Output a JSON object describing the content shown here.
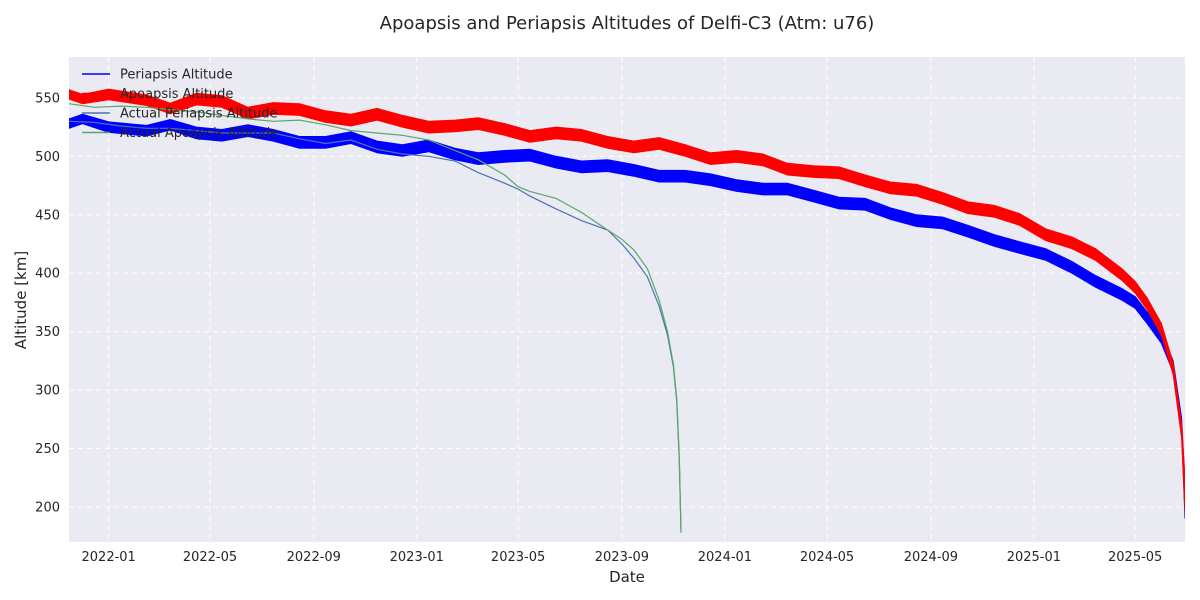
{
  "chart_data": {
    "type": "line",
    "title": "Apoapsis and Periapsis Altitudes of Delfi-C3 (Atm: u76)",
    "xlabel": "Date",
    "ylabel": "Altitude [km]",
    "x_range": [
      "2021-11-15",
      "2025-06-29"
    ],
    "ylim": [
      170,
      585
    ],
    "x_ticks": [
      "2022-01",
      "2022-05",
      "2022-09",
      "2023-01",
      "2023-05",
      "2023-09",
      "2024-01",
      "2024-05",
      "2024-09",
      "2025-01",
      "2025-05"
    ],
    "y_ticks": [
      200,
      250,
      300,
      350,
      400,
      450,
      500,
      550
    ],
    "grid": true,
    "legend_position": "top-left",
    "colors": {
      "background": "#eaeaf2",
      "grid": "#ffffff",
      "periapsis": "#0000ff",
      "apoapsis": "#ff0000",
      "actual_periapsis": "#4c72b0",
      "actual_apoapsis": "#55a868"
    },
    "series": [
      {
        "name": "Periapsis Altitude",
        "color": "#0000ff",
        "band": true,
        "x": [
          "2021-11-15",
          "2021-12-01",
          "2022-01-01",
          "2022-02-15",
          "2022-03-15",
          "2022-04-15",
          "2022-05-15",
          "2022-06-15",
          "2022-07-15",
          "2022-08-15",
          "2022-09-15",
          "2022-10-15",
          "2022-11-15",
          "2022-12-15",
          "2023-01-15",
          "2023-02-15",
          "2023-03-15",
          "2023-04-15",
          "2023-05-15",
          "2023-06-15",
          "2023-07-15",
          "2023-08-15",
          "2023-09-15",
          "2023-10-15",
          "2023-11-15",
          "2023-12-15",
          "2024-01-15",
          "2024-02-15",
          "2024-03-15",
          "2024-04-15",
          "2024-05-15",
          "2024-06-15",
          "2024-07-15",
          "2024-08-15",
          "2024-09-15",
          "2024-10-15",
          "2024-11-15",
          "2024-12-15",
          "2025-01-15",
          "2025-02-15",
          "2025-03-15",
          "2025-04-15",
          "2025-05-01",
          "2025-05-15",
          "2025-06-01",
          "2025-06-15",
          "2025-06-25",
          "2025-06-29"
        ],
        "values": [
          528,
          532,
          525,
          522,
          527,
          520,
          518,
          522,
          518,
          512,
          512,
          516,
          508,
          505,
          509,
          502,
          498,
          500,
          501,
          495,
          491,
          492,
          488,
          483,
          483,
          480,
          475,
          472,
          472,
          466,
          460,
          459,
          451,
          445,
          443,
          436,
          428,
          422,
          416,
          405,
          393,
          382,
          375,
          362,
          345,
          320,
          270,
          205
        ],
        "band_width": [
          8,
          8,
          9,
          9,
          9,
          10,
          10,
          10,
          10,
          10,
          10,
          10,
          10,
          10,
          10,
          10,
          10,
          10,
          10,
          10,
          10,
          10,
          10,
          10,
          10,
          10,
          10,
          10,
          10,
          10,
          10,
          10,
          10,
          10,
          10,
          10,
          10,
          10,
          10,
          10,
          10,
          10,
          10,
          10,
          10,
          10,
          12,
          30
        ]
      },
      {
        "name": "Apoapsis Altitude",
        "color": "#ff0000",
        "band": true,
        "x": [
          "2021-11-15",
          "2021-12-01",
          "2022-01-01",
          "2022-02-15",
          "2022-03-15",
          "2022-04-15",
          "2022-05-15",
          "2022-06-15",
          "2022-07-15",
          "2022-08-15",
          "2022-09-15",
          "2022-10-15",
          "2022-11-15",
          "2022-12-15",
          "2023-01-15",
          "2023-02-15",
          "2023-03-15",
          "2023-04-15",
          "2023-05-15",
          "2023-06-15",
          "2023-07-15",
          "2023-08-15",
          "2023-09-15",
          "2023-10-15",
          "2023-11-15",
          "2023-12-15",
          "2024-01-15",
          "2024-02-15",
          "2024-03-15",
          "2024-04-15",
          "2024-05-15",
          "2024-06-15",
          "2024-07-15",
          "2024-08-15",
          "2024-09-15",
          "2024-10-15",
          "2024-11-15",
          "2024-12-15",
          "2025-01-15",
          "2025-02-15",
          "2025-03-15",
          "2025-04-15",
          "2025-05-01",
          "2025-05-15",
          "2025-06-01",
          "2025-06-15",
          "2025-06-25",
          "2025-06-29"
        ],
        "values": [
          553,
          549,
          553,
          548,
          541,
          549,
          547,
          537,
          541,
          540,
          534,
          531,
          536,
          530,
          525,
          526,
          528,
          523,
          517,
          520,
          518,
          512,
          508,
          511,
          505,
          498,
          500,
          497,
          489,
          487,
          486,
          479,
          473,
          471,
          464,
          456,
          453,
          446,
          433,
          426,
          416,
          399,
          388,
          374,
          352,
          318,
          265,
          210
        ],
        "band_width": [
          8,
          8,
          9,
          9,
          9,
          10,
          10,
          10,
          10,
          10,
          10,
          10,
          10,
          10,
          10,
          10,
          10,
          10,
          10,
          10,
          10,
          10,
          10,
          10,
          10,
          10,
          10,
          10,
          10,
          10,
          10,
          10,
          10,
          10,
          10,
          10,
          10,
          10,
          10,
          10,
          10,
          10,
          10,
          10,
          10,
          10,
          12,
          30
        ]
      },
      {
        "name": "Actual Periapsis Altitude",
        "color": "#4c72b0",
        "band": false,
        "x": [
          "2021-11-15",
          "2021-12-15",
          "2022-01-15",
          "2022-02-15",
          "2022-03-15",
          "2022-04-15",
          "2022-05-15",
          "2022-06-15",
          "2022-07-15",
          "2022-08-15",
          "2022-09-15",
          "2022-10-15",
          "2022-11-15",
          "2022-12-15",
          "2023-01-15",
          "2023-02-15",
          "2023-03-15",
          "2023-04-15",
          "2023-05-01",
          "2023-05-15",
          "2023-06-15",
          "2023-07-15",
          "2023-08-15",
          "2023-09-01",
          "2023-09-15",
          "2023-10-01",
          "2023-10-15",
          "2023-10-25",
          "2023-11-01",
          "2023-11-05",
          "2023-11-08",
          "2023-11-10"
        ],
        "values": [
          530,
          529,
          526,
          524,
          524,
          522,
          520,
          520,
          520,
          515,
          511,
          514,
          506,
          502,
          500,
          496,
          486,
          477,
          472,
          466,
          455,
          445,
          437,
          425,
          413,
          397,
          372,
          347,
          320,
          290,
          240,
          180
        ]
      },
      {
        "name": "Actual Apoapsis Altitude",
        "color": "#55a868",
        "band": false,
        "x": [
          "2021-11-15",
          "2021-12-15",
          "2022-01-15",
          "2022-02-15",
          "2022-03-15",
          "2022-04-15",
          "2022-05-15",
          "2022-06-15",
          "2022-07-15",
          "2022-08-15",
          "2022-09-15",
          "2022-10-15",
          "2022-11-15",
          "2022-12-15",
          "2023-01-15",
          "2023-02-15",
          "2023-03-15",
          "2023-04-15",
          "2023-05-01",
          "2023-05-15",
          "2023-06-15",
          "2023-07-15",
          "2023-08-15",
          "2023-09-01",
          "2023-09-15",
          "2023-10-01",
          "2023-10-15",
          "2023-10-25",
          "2023-11-01",
          "2023-11-05",
          "2023-11-08",
          "2023-11-10"
        ],
        "values": [
          545,
          542,
          543,
          542,
          540,
          538,
          535,
          532,
          530,
          531,
          527,
          522,
          520,
          518,
          514,
          505,
          497,
          484,
          474,
          470,
          464,
          452,
          437,
          429,
          420,
          404,
          377,
          350,
          322,
          292,
          242,
          178
        ]
      }
    ]
  }
}
